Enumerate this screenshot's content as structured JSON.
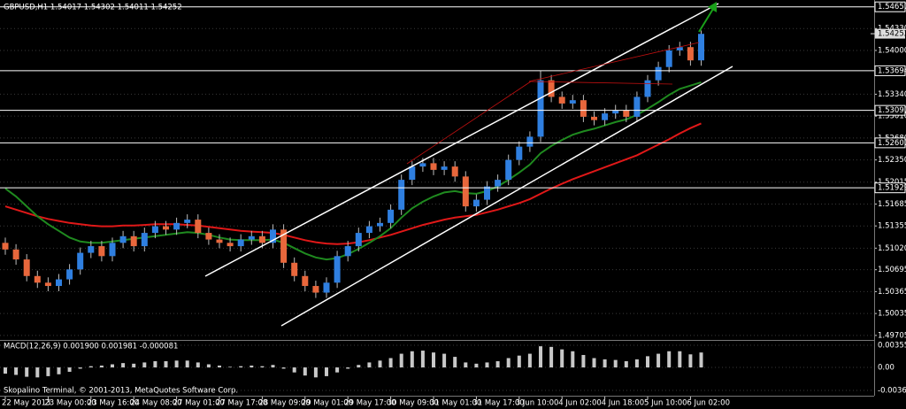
{
  "chart_data": {
    "type": "candlestick",
    "title": "GBPUSD,H1  1.54017 1.54302 1.54011 1.54252",
    "footer": "Skopalino Terminal, © 2001-2013, MetaQuotes Software Corp.",
    "categories": [
      "22 May 2013",
      null,
      null,
      null,
      "23 May 00:00",
      null,
      null,
      null,
      "23 May 16:00",
      null,
      null,
      null,
      "24 May 08:00",
      null,
      null,
      null,
      "27 May 01:00",
      null,
      null,
      null,
      "27 May 17:00",
      null,
      null,
      null,
      "28 May 09:00",
      null,
      null,
      null,
      "29 May 01:00",
      null,
      null,
      null,
      "29 May 17:00",
      null,
      null,
      null,
      "30 May 09:00",
      null,
      null,
      null,
      "31 May 01:00",
      null,
      null,
      null,
      "31 May 17:00",
      null,
      null,
      null,
      "3 Jun 10:00",
      null,
      null,
      null,
      "4 Jun 02:00",
      null,
      null,
      null,
      "4 Jun 18:00",
      null,
      null,
      null,
      "5 Jun 10:00",
      null,
      null,
      null,
      "6 Jun 02:00",
      null
    ],
    "open": [
      1.511,
      1.51,
      1.5085,
      1.506,
      1.505,
      1.5045,
      1.5055,
      1.507,
      1.5095,
      1.5105,
      1.509,
      1.511,
      1.512,
      1.5105,
      1.5125,
      1.5135,
      1.513,
      1.514,
      1.5145,
      1.5125,
      1.5115,
      1.511,
      1.5105,
      1.5115,
      1.512,
      1.511,
      1.513,
      1.508,
      1.506,
      1.5045,
      1.5035,
      1.505,
      1.509,
      1.5105,
      1.5125,
      1.5135,
      1.514,
      1.516,
      1.5205,
      1.5225,
      1.523,
      1.522,
      1.5225,
      1.521,
      1.5165,
      1.5175,
      1.5195,
      1.5205,
      1.5235,
      1.5255,
      1.527,
      1.5355,
      1.533,
      1.532,
      1.5325,
      1.53,
      1.5295,
      1.5305,
      1.531,
      1.53,
      1.533,
      1.5355,
      1.5375,
      1.54,
      1.5405,
      1.5385
    ],
    "high": [
      1.5118,
      1.5108,
      1.5093,
      1.5068,
      1.5058,
      1.5063,
      1.5078,
      1.5103,
      1.5113,
      1.5113,
      1.5118,
      1.5128,
      1.5128,
      1.5133,
      1.5143,
      1.5143,
      1.5148,
      1.5153,
      1.5153,
      1.5133,
      1.5123,
      1.5118,
      1.5123,
      1.5128,
      1.5128,
      1.5138,
      1.5138,
      1.5088,
      1.5068,
      1.5053,
      1.5058,
      1.5098,
      1.5113,
      1.5133,
      1.5143,
      1.5148,
      1.5168,
      1.5213,
      1.5233,
      1.5238,
      1.5238,
      1.5233,
      1.5233,
      1.5218,
      1.5183,
      1.5203,
      1.5213,
      1.5243,
      1.5263,
      1.5278,
      1.537,
      1.5363,
      1.5338,
      1.5333,
      1.5333,
      1.5308,
      1.5313,
      1.5318,
      1.5318,
      1.5338,
      1.5363,
      1.5383,
      1.5408,
      1.5413,
      1.5413,
      1.543
    ],
    "low": [
      1.5092,
      1.5077,
      1.5052,
      1.5042,
      1.5037,
      1.5037,
      1.5047,
      1.5062,
      1.5087,
      1.5082,
      1.5082,
      1.5102,
      1.5097,
      1.5097,
      1.5117,
      1.5122,
      1.5122,
      1.5132,
      1.5117,
      1.5107,
      1.5102,
      1.5097,
      1.5097,
      1.5107,
      1.5102,
      1.5102,
      1.5072,
      1.5052,
      1.5037,
      1.5027,
      1.5027,
      1.5042,
      1.5082,
      1.5097,
      1.5117,
      1.5127,
      1.5132,
      1.5152,
      1.5197,
      1.5217,
      1.5212,
      1.5212,
      1.5202,
      1.5157,
      1.5157,
      1.5167,
      1.5187,
      1.5197,
      1.5227,
      1.5247,
      1.5262,
      1.5322,
      1.5312,
      1.5312,
      1.5292,
      1.5287,
      1.5287,
      1.5297,
      1.5292,
      1.5292,
      1.5322,
      1.5347,
      1.5367,
      1.5392,
      1.5377,
      1.5377
    ],
    "close": [
      1.51,
      1.5085,
      1.506,
      1.505,
      1.5045,
      1.5055,
      1.507,
      1.5095,
      1.5105,
      1.509,
      1.511,
      1.512,
      1.5105,
      1.5125,
      1.5135,
      1.513,
      1.514,
      1.5145,
      1.5125,
      1.5115,
      1.511,
      1.5105,
      1.5115,
      1.512,
      1.511,
      1.513,
      1.508,
      1.506,
      1.5045,
      1.5035,
      1.505,
      1.509,
      1.5105,
      1.5125,
      1.5135,
      1.514,
      1.516,
      1.5205,
      1.5225,
      1.523,
      1.522,
      1.5225,
      1.521,
      1.5165,
      1.5175,
      1.5195,
      1.5205,
      1.5235,
      1.5255,
      1.527,
      1.5355,
      1.533,
      1.532,
      1.5325,
      1.53,
      1.5295,
      1.5305,
      1.531,
      1.53,
      1.533,
      1.5355,
      1.5375,
      1.54,
      1.5405,
      1.5385,
      1.5425
    ],
    "colors": {
      "up": "#2f7fe0",
      "down": "#e8673c",
      "wick": "#bbbbbb",
      "grid": "#3a3a3a",
      "level": "#ffffff"
    },
    "overlays": [
      {
        "color": "#e01818",
        "values": [
          1.5165,
          1.516,
          1.5155,
          1.515,
          1.5146,
          1.5143,
          1.514,
          1.5138,
          1.5136,
          1.5135,
          1.5135,
          1.5136,
          1.5136,
          1.5137,
          1.5138,
          1.5138,
          1.5138,
          1.5137,
          1.5136,
          1.5134,
          1.5132,
          1.513,
          1.5128,
          1.5127,
          1.5126,
          1.5125,
          1.5122,
          1.5118,
          1.5114,
          1.5111,
          1.5109,
          1.5108,
          1.5109,
          1.5111,
          1.5114,
          1.5118,
          1.5122,
          1.5127,
          1.5132,
          1.5137,
          1.5141,
          1.5145,
          1.5148,
          1.515,
          1.5152,
          1.5156,
          1.516,
          1.5165,
          1.517,
          1.5176,
          1.5184,
          1.5192,
          1.5199,
          1.5206,
          1.5212,
          1.5218,
          1.5224,
          1.523,
          1.5236,
          1.5242,
          1.525,
          1.5258,
          1.5266,
          1.5275,
          1.5283,
          1.529
        ]
      },
      {
        "color": "#1f8a1f",
        "values": [
          1.5192,
          1.518,
          1.5165,
          1.515,
          1.5138,
          1.5128,
          1.5118,
          1.5112,
          1.511,
          1.511,
          1.5112,
          1.5114,
          1.5116,
          1.5118,
          1.512,
          1.5122,
          1.5124,
          1.5126,
          1.5125,
          1.5122,
          1.5118,
          1.5115,
          1.5114,
          1.5114,
          1.5114,
          1.5115,
          1.511,
          1.5102,
          1.5094,
          1.5088,
          1.5085,
          1.5087,
          1.5093,
          1.5101,
          1.511,
          1.512,
          1.5132,
          1.5148,
          1.5162,
          1.5172,
          1.518,
          1.5186,
          1.5188,
          1.5185,
          1.5184,
          1.5188,
          1.5195,
          1.5205,
          1.5216,
          1.5228,
          1.5245,
          1.5256,
          1.5265,
          1.5273,
          1.5278,
          1.5282,
          1.5287,
          1.5292,
          1.5296,
          1.5303,
          1.5312,
          1.5322,
          1.5333,
          1.5342,
          1.5347,
          1.5352
        ]
      }
    ],
    "ylim": [
      1.4965,
      1.5476
    ],
    "yticks": [
      {
        "value": 1.5433,
        "label": "1.54330"
      },
      {
        "value": 1.54,
        "label": "1.54000"
      },
      {
        "value": 1.5334,
        "label": "1.53340"
      },
      {
        "value": 1.5301,
        "label": "1.53010"
      },
      {
        "value": 1.5268,
        "label": "1.52680"
      },
      {
        "value": 1.5235,
        "label": "1.52350"
      },
      1.52015,
      1.51685,
      1.51355,
      {
        "value": 1.5102,
        "label": "1.51020"
      },
      1.50695,
      1.50365,
      1.50035,
      1.49705
    ],
    "grid": true,
    "levels": [
      1.54657,
      1.53694,
      1.53097,
      1.52607,
      1.51929
    ],
    "current_price": 1.54252,
    "macd": {
      "label": "MACD(12,26,9) 0.001900 0.001981 -0.000081",
      "color": "#c8c8c8",
      "values": [
        -0.001,
        -0.0012,
        -0.0015,
        -0.0016,
        -0.0014,
        -0.0011,
        -0.0007,
        -0.0002,
        0.0002,
        0.0003,
        0.0005,
        0.0007,
        0.0006,
        0.0008,
        0.001,
        0.001,
        0.0011,
        0.0011,
        0.0008,
        0.0005,
        0.0003,
        0.0001,
        0.0002,
        0.0003,
        0.0002,
        0.0004,
        -0.0002,
        -0.0008,
        -0.0013,
        -0.0016,
        -0.0014,
        -0.0008,
        -0.0002,
        0.0004,
        0.0008,
        0.0011,
        0.0015,
        0.0022,
        0.0026,
        0.0027,
        0.0024,
        0.0022,
        0.0017,
        0.0008,
        0.0006,
        0.0008,
        0.001,
        0.0015,
        0.0019,
        0.0022,
        0.0034,
        0.0033,
        0.0029,
        0.0026,
        0.002,
        0.0015,
        0.0013,
        0.0012,
        0.001,
        0.0013,
        0.0018,
        0.0022,
        0.0026,
        0.0026,
        0.0021,
        0.0024
      ],
      "ylim": [
        -0.0044,
        0.00413
      ],
      "yticks": [
        0.003558,
        {
          "value": 0,
          "label": "0.00"
        },
        -0.003691
      ]
    }
  }
}
